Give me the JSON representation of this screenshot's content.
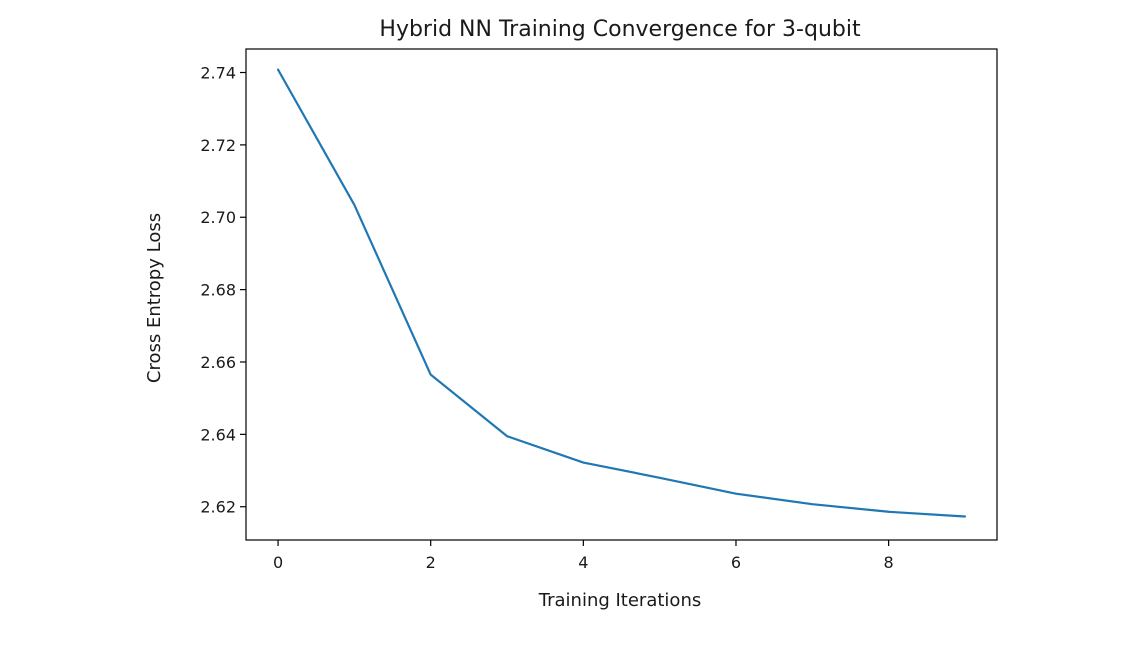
{
  "chart_data": {
    "type": "line",
    "title": "Hybrid NN Training Convergence for 3-qubit",
    "xlabel": "Training Iterations",
    "ylabel": "Cross Entropy Loss",
    "xlim": [
      -0.42,
      9.42
    ],
    "ylim": [
      2.6108,
      2.7465
    ],
    "x_ticks": [
      0,
      2,
      4,
      6,
      8
    ],
    "y_ticks": [
      2.62,
      2.64,
      2.66,
      2.68,
      2.7,
      2.72,
      2.74
    ],
    "x_tick_labels": [
      "0",
      "2",
      "4",
      "6",
      "8"
    ],
    "y_tick_labels": [
      "2.62",
      "2.64",
      "2.66",
      "2.68",
      "2.70",
      "2.72",
      "2.74"
    ],
    "grid": false,
    "series": [
      {
        "color": "#1f77b4",
        "x": [
          0,
          1,
          2,
          3,
          4,
          5,
          6,
          7,
          8,
          9
        ],
        "y": [
          2.7408,
          2.7034,
          2.6565,
          2.6395,
          2.6322,
          2.628,
          2.6236,
          2.6207,
          2.6186,
          2.6173
        ]
      }
    ]
  }
}
